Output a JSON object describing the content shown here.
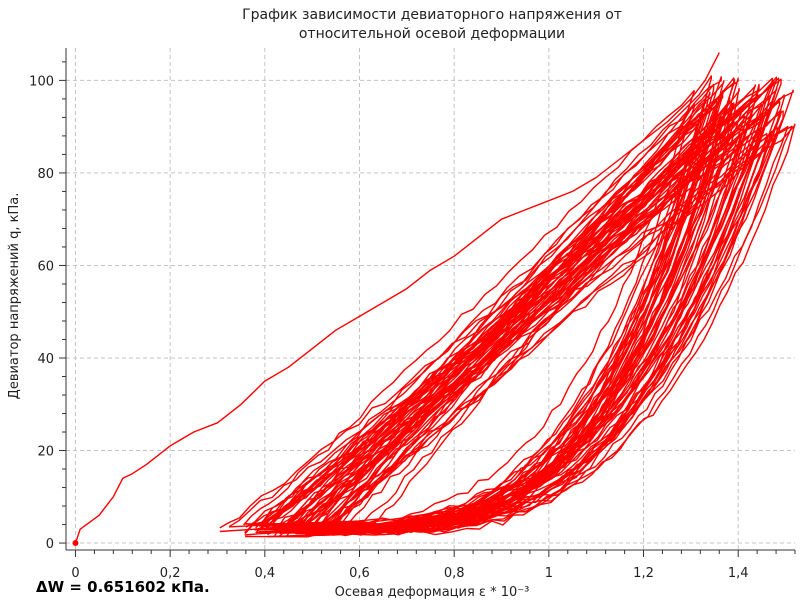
{
  "footer": {
    "energy_text": "ΔW = 0.651602 кПа."
  },
  "chart_data": {
    "type": "line",
    "title_lines": [
      "График зависимости девиаторного напряжения от",
      "относительной осевой деформации"
    ],
    "xlabel": "Осевая деформация ε * 10⁻³",
    "ylabel": "Девиатор напряжений q, кПа.",
    "xlim": [
      -0.02,
      1.52
    ],
    "ylim": [
      -1.5,
      107
    ],
    "x_ticks": [
      0,
      0.2,
      0.4,
      0.6,
      0.8,
      1,
      1.2,
      1.4
    ],
    "x_tick_labels": [
      "0",
      "0,2",
      "0,4",
      "0,6",
      "0,8",
      "1",
      "1,2",
      "1,4"
    ],
    "y_ticks": [
      0,
      20,
      40,
      60,
      80,
      100
    ],
    "y_tick_labels": [
      "0",
      "20",
      "40",
      "60",
      "80",
      "100"
    ],
    "grid": true,
    "color": "#ff0000",
    "initial_loading": {
      "x": [
        0,
        0.01,
        0.05,
        0.08,
        0.1,
        0.12,
        0.15,
        0.2,
        0.25,
        0.3,
        0.35,
        0.38,
        0.4,
        0.45,
        0.5,
        0.55,
        0.6,
        0.65,
        0.7,
        0.75,
        0.8,
        0.85,
        0.9,
        0.95,
        1.0,
        1.05,
        1.1,
        1.15,
        1.2,
        1.25,
        1.3,
        1.33,
        1.36
      ],
      "y": [
        0,
        3,
        6,
        10,
        14,
        15,
        17,
        21,
        24,
        26,
        30,
        33,
        35,
        38,
        42,
        46,
        49,
        52,
        55,
        59,
        62,
        66,
        70,
        72,
        74,
        76,
        79,
        83,
        87,
        91,
        96,
        100,
        106
      ]
    },
    "loop_count": 60,
    "loop_start_x": [
      0.3,
      0.62
    ],
    "loop_peak_x": [
      1.3,
      1.52
    ],
    "loop_low_y": 2,
    "loop_high_y": [
      88,
      101
    ]
  }
}
